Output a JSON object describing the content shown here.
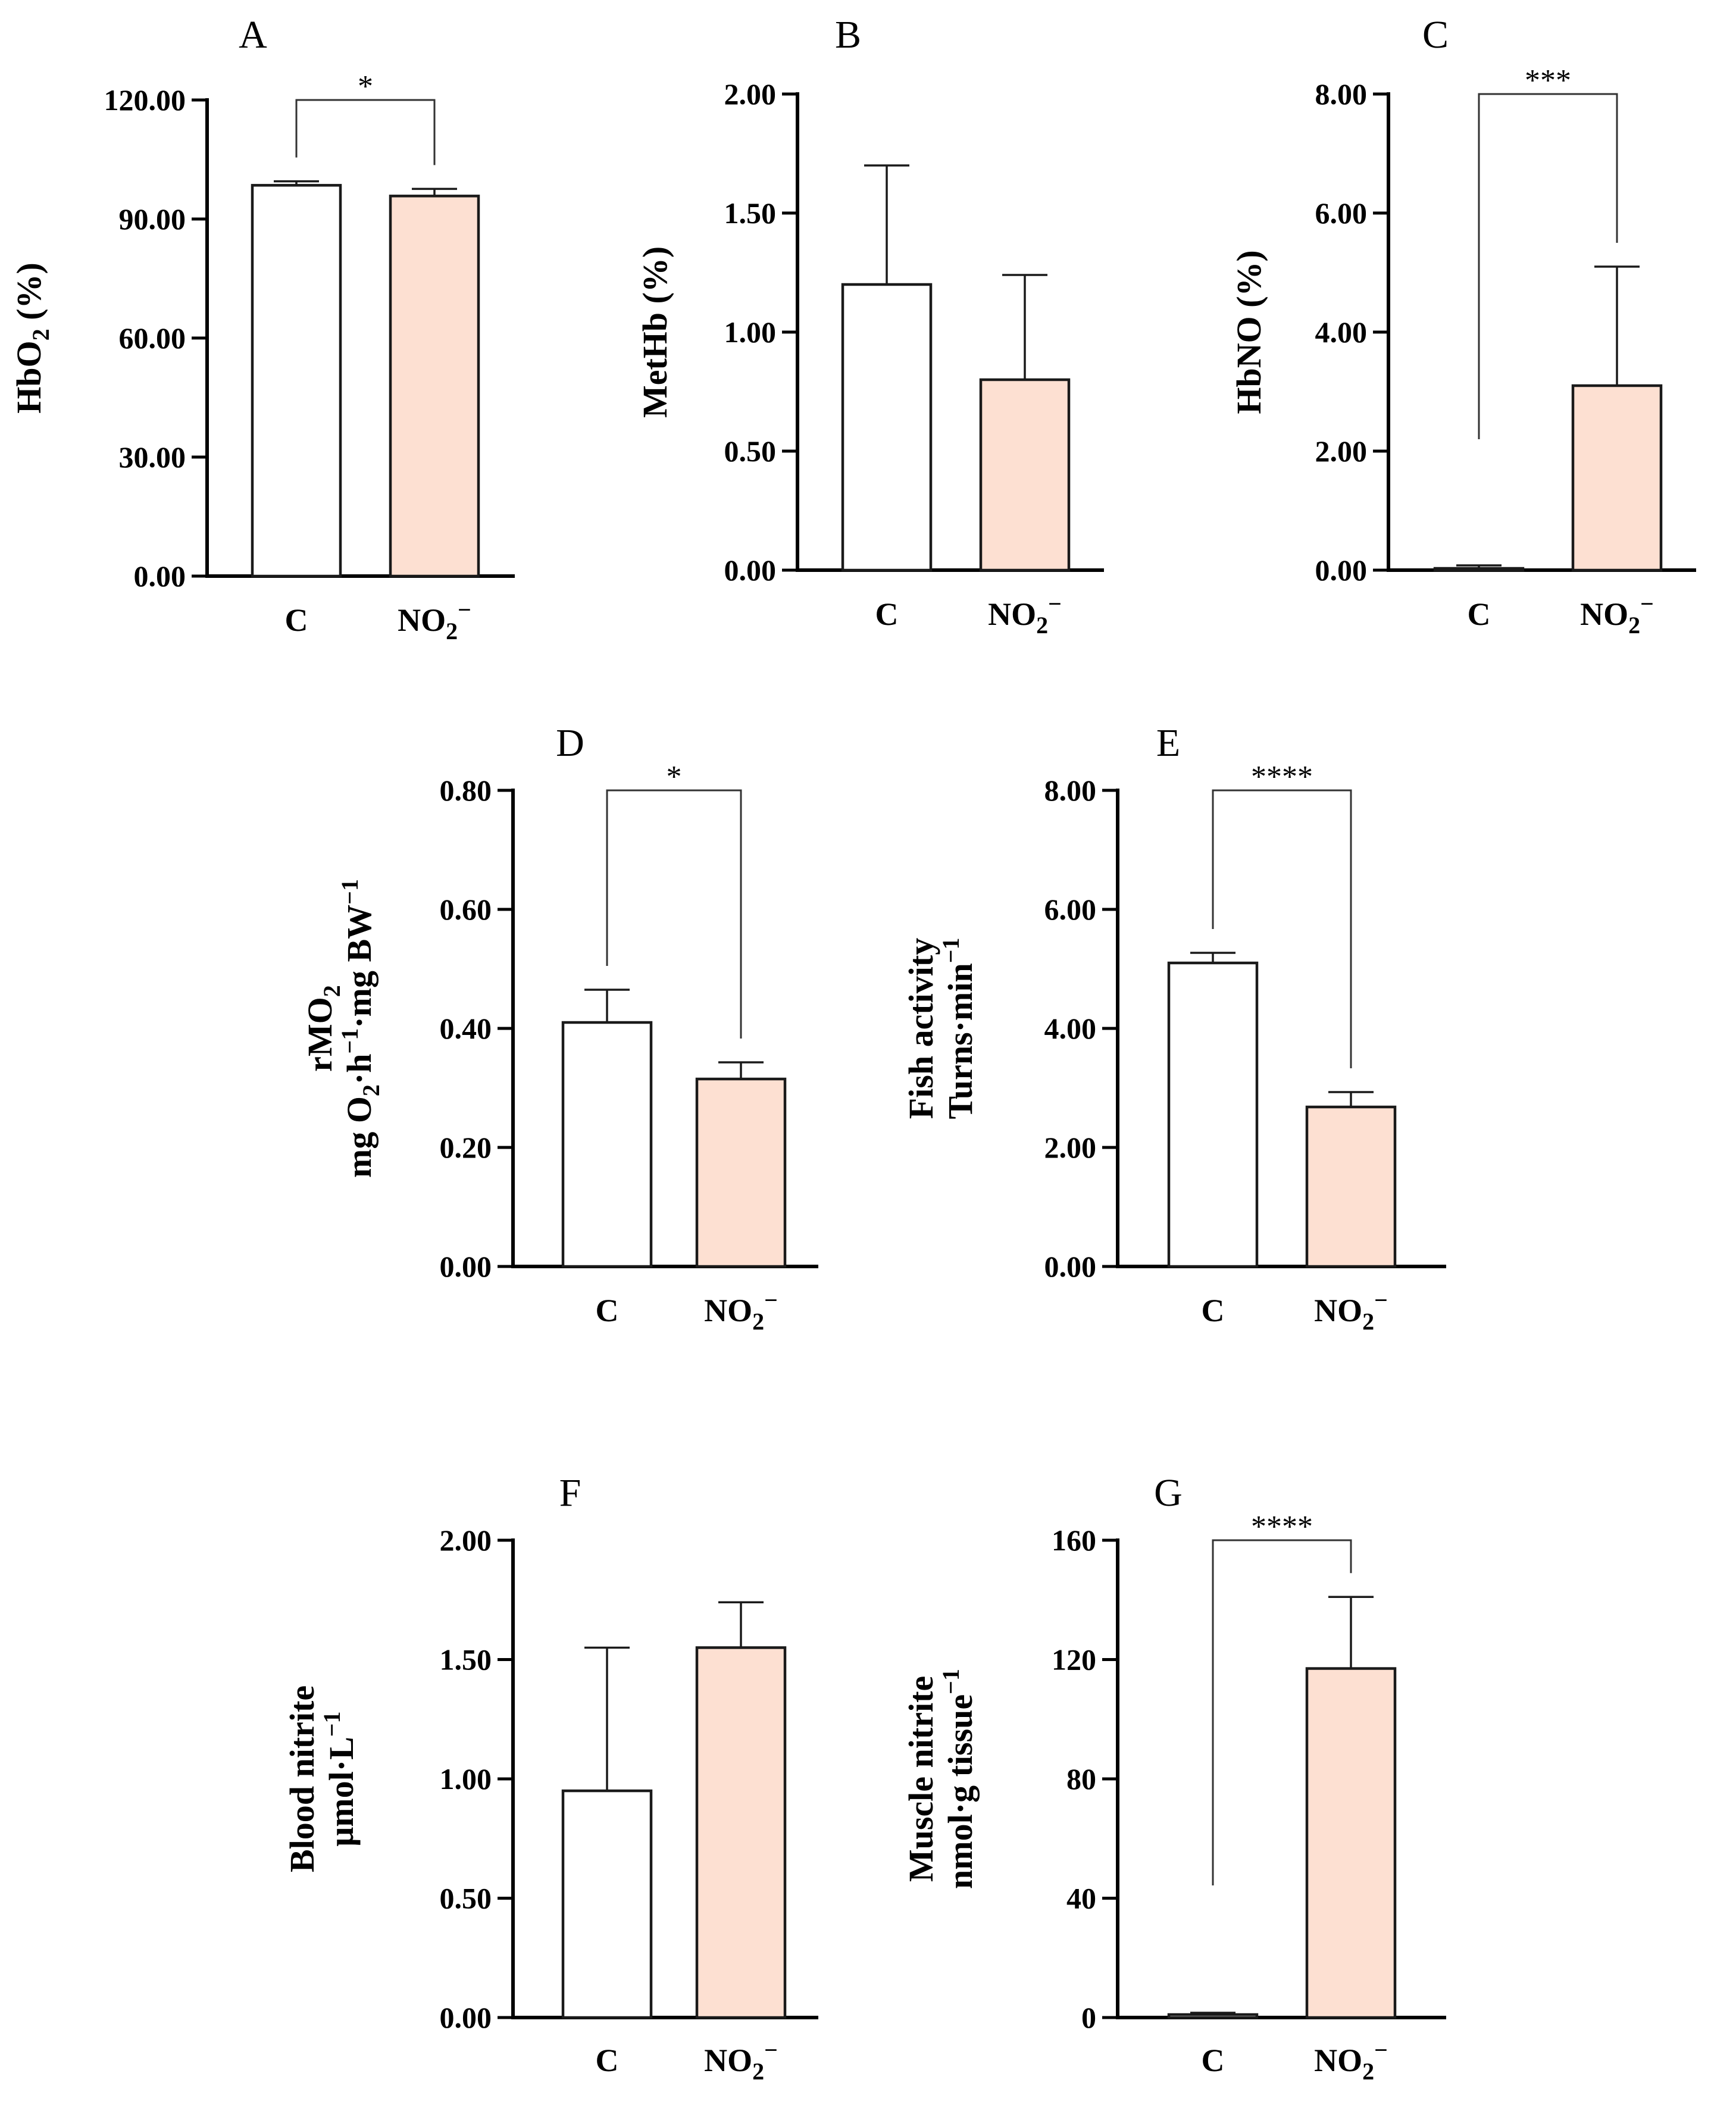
{
  "figure": {
    "bar_colors": {
      "control": "#ffffff",
      "nitrite": "#fde0d2"
    }
  },
  "chart_data": [
    {
      "panel": "A",
      "type": "bar",
      "categories": [
        "C",
        "NO2−"
      ],
      "values": [
        98.5,
        95.8
      ],
      "errors": [
        1.0,
        1.8
      ],
      "ylim": [
        0,
        120
      ],
      "yticks": [
        0,
        30,
        60,
        90,
        120
      ],
      "tick_decimals": 2,
      "ylabel": "HbO2 (%)",
      "significance": "*",
      "bracket_top": 120
    },
    {
      "panel": "B",
      "type": "bar",
      "categories": [
        "C",
        "NO2−"
      ],
      "values": [
        1.2,
        0.8
      ],
      "errors": [
        0.5,
        0.44
      ],
      "ylim": [
        0,
        2
      ],
      "yticks": [
        0,
        0.5,
        1,
        1.5,
        2
      ],
      "tick_decimals": 2,
      "ylabel": "MetHb (%)"
    },
    {
      "panel": "C",
      "type": "bar",
      "categories": [
        "C",
        "NO2−"
      ],
      "values": [
        0.03,
        3.1
      ],
      "errors": [
        0.05,
        2.0
      ],
      "ylim": [
        0,
        8
      ],
      "yticks": [
        0,
        2,
        4,
        6,
        8
      ],
      "tick_decimals": 2,
      "ylabel": "HbNO (%)",
      "significance": "***",
      "bracket_top": 8
    },
    {
      "panel": "D",
      "type": "bar",
      "categories": [
        "C",
        "NO2−"
      ],
      "values": [
        0.41,
        0.315
      ],
      "errors": [
        0.055,
        0.028
      ],
      "ylim": [
        0,
        0.8
      ],
      "yticks": [
        0,
        0.2,
        0.4,
        0.6,
        0.8
      ],
      "tick_decimals": 2,
      "ylabel": [
        "rMO2",
        "mg O2·h−1·mg BW−1"
      ],
      "significance": "*",
      "bracket_top": 0.8
    },
    {
      "panel": "E",
      "type": "bar",
      "categories": [
        "C",
        "NO2−"
      ],
      "values": [
        5.1,
        2.68
      ],
      "errors": [
        0.17,
        0.25
      ],
      "ylim": [
        0,
        8
      ],
      "yticks": [
        0,
        2,
        4,
        6,
        8
      ],
      "tick_decimals": 2,
      "ylabel": [
        "Fish activity",
        "Turns·min−1"
      ],
      "significance": "****",
      "bracket_top": 8
    },
    {
      "panel": "F",
      "type": "bar",
      "categories": [
        "C",
        "NO2−"
      ],
      "values": [
        0.95,
        1.55
      ],
      "errors": [
        0.6,
        0.19
      ],
      "ylim": [
        0,
        2
      ],
      "yticks": [
        0,
        0.5,
        1,
        1.5,
        2
      ],
      "tick_decimals": 2,
      "ylabel": [
        "Blood nitrite",
        "μmol·L−1"
      ]
    },
    {
      "panel": "G",
      "type": "bar",
      "categories": [
        "C",
        "NO2−"
      ],
      "values": [
        1.0,
        117
      ],
      "errors": [
        0.6,
        24
      ],
      "ylim": [
        0,
        160
      ],
      "yticks": [
        0,
        40,
        80,
        120,
        160
      ],
      "tick_decimals": 0,
      "ylabel": [
        "Muscle nitrite",
        "nmol·g tissue−1"
      ],
      "significance": "****",
      "bracket_top": 160
    }
  ]
}
